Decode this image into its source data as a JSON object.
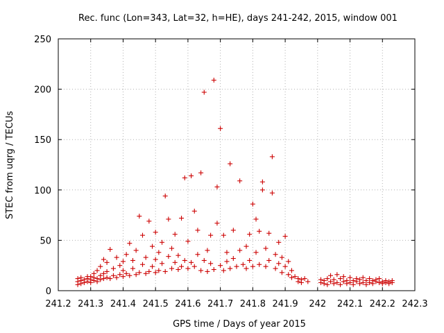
{
  "chart_data": {
    "type": "scatter",
    "title": "Rec. func (Lon=343, Lat=32, h=HE), days 241-242, 2015, window 001",
    "xlabel": "GPS time / Days of year 2015",
    "ylabel": "STEC from uqrg / TECUs",
    "xlim": [
      241.2,
      242.3
    ],
    "ylim": [
      0,
      250
    ],
    "xticks": [
      "241.2",
      "241.3",
      "241.4",
      "241.5",
      "241.6",
      "241.7",
      "241.8",
      "241.9",
      "242",
      "242.1",
      "242.2",
      "242.3"
    ],
    "yticks": [
      "0",
      "50",
      "100",
      "150",
      "200",
      "250"
    ],
    "grid": true,
    "marker": "+",
    "marker_color": "#cc0000",
    "points": [
      [
        241.26,
        6
      ],
      [
        241.26,
        9
      ],
      [
        241.26,
        12
      ],
      [
        241.27,
        7
      ],
      [
        241.27,
        10
      ],
      [
        241.27,
        13
      ],
      [
        241.28,
        8
      ],
      [
        241.28,
        11
      ],
      [
        241.29,
        9
      ],
      [
        241.29,
        12
      ],
      [
        241.29,
        14
      ],
      [
        241.3,
        8
      ],
      [
        241.3,
        11
      ],
      [
        241.3,
        14
      ],
      [
        241.31,
        10
      ],
      [
        241.31,
        13
      ],
      [
        241.31,
        17
      ],
      [
        241.32,
        9
      ],
      [
        241.32,
        12
      ],
      [
        241.32,
        20
      ],
      [
        241.33,
        11
      ],
      [
        241.33,
        15
      ],
      [
        241.33,
        24
      ],
      [
        241.34,
        12
      ],
      [
        241.34,
        17
      ],
      [
        241.34,
        31
      ],
      [
        241.35,
        13
      ],
      [
        241.35,
        19
      ],
      [
        241.35,
        28
      ],
      [
        241.36,
        41
      ],
      [
        241.36,
        12
      ],
      [
        241.37,
        15
      ],
      [
        241.37,
        22
      ],
      [
        241.38,
        33
      ],
      [
        241.38,
        13
      ],
      [
        241.39,
        16
      ],
      [
        241.39,
        25
      ],
      [
        241.4,
        14
      ],
      [
        241.4,
        20
      ],
      [
        241.4,
        29
      ],
      [
        241.41,
        17
      ],
      [
        241.41,
        36
      ],
      [
        241.42,
        15
      ],
      [
        241.42,
        47
      ],
      [
        241.43,
        22
      ],
      [
        241.43,
        30
      ],
      [
        241.44,
        16
      ],
      [
        241.44,
        40
      ],
      [
        241.45,
        74
      ],
      [
        241.45,
        18
      ],
      [
        241.46,
        26
      ],
      [
        241.46,
        55
      ],
      [
        241.47,
        17
      ],
      [
        241.47,
        33
      ],
      [
        241.48,
        69
      ],
      [
        241.48,
        19
      ],
      [
        241.49,
        24
      ],
      [
        241.49,
        44
      ],
      [
        241.5,
        18
      ],
      [
        241.5,
        31
      ],
      [
        241.5,
        58
      ],
      [
        241.51,
        20
      ],
      [
        241.51,
        38
      ],
      [
        241.52,
        27
      ],
      [
        241.52,
        48
      ],
      [
        241.53,
        94
      ],
      [
        241.53,
        19
      ],
      [
        241.54,
        34
      ],
      [
        241.54,
        71
      ],
      [
        241.55,
        22
      ],
      [
        241.55,
        42
      ],
      [
        241.56,
        28
      ],
      [
        241.56,
        56
      ],
      [
        241.57,
        21
      ],
      [
        241.57,
        35
      ],
      [
        241.58,
        72
      ],
      [
        241.58,
        24
      ],
      [
        241.59,
        112
      ],
      [
        241.59,
        30
      ],
      [
        241.6,
        22
      ],
      [
        241.6,
        49
      ],
      [
        241.61,
        114
      ],
      [
        241.61,
        28
      ],
      [
        241.62,
        79
      ],
      [
        241.62,
        24
      ],
      [
        241.63,
        60
      ],
      [
        241.63,
        36
      ],
      [
        241.64,
        117
      ],
      [
        241.64,
        20
      ],
      [
        241.65,
        197
      ],
      [
        241.65,
        30
      ],
      [
        241.66,
        40
      ],
      [
        241.66,
        19
      ],
      [
        241.67,
        55
      ],
      [
        241.67,
        27
      ],
      [
        241.68,
        209
      ],
      [
        241.68,
        21
      ],
      [
        241.69,
        103
      ],
      [
        241.69,
        67
      ],
      [
        241.7,
        161
      ],
      [
        241.7,
        25
      ],
      [
        241.71,
        55
      ],
      [
        241.71,
        20
      ],
      [
        241.72,
        38
      ],
      [
        241.72,
        29
      ],
      [
        241.73,
        126
      ],
      [
        241.73,
        22
      ],
      [
        241.74,
        60
      ],
      [
        241.74,
        32
      ],
      [
        241.75,
        24
      ],
      [
        241.76,
        109
      ],
      [
        241.76,
        40
      ],
      [
        241.77,
        26
      ],
      [
        241.78,
        44
      ],
      [
        241.78,
        22
      ],
      [
        241.79,
        56
      ],
      [
        241.79,
        30
      ],
      [
        241.8,
        86
      ],
      [
        241.8,
        24
      ],
      [
        241.81,
        71
      ],
      [
        241.81,
        38
      ],
      [
        241.82,
        59
      ],
      [
        241.82,
        26
      ],
      [
        241.83,
        108
      ],
      [
        241.83,
        100
      ],
      [
        241.84,
        42
      ],
      [
        241.84,
        24
      ],
      [
        241.85,
        57
      ],
      [
        241.85,
        30
      ],
      [
        241.86,
        133
      ],
      [
        241.86,
        97
      ],
      [
        241.87,
        36
      ],
      [
        241.87,
        22
      ],
      [
        241.88,
        48
      ],
      [
        241.88,
        27
      ],
      [
        241.89,
        33
      ],
      [
        241.89,
        18
      ],
      [
        241.9,
        54
      ],
      [
        241.9,
        24
      ],
      [
        241.91,
        29
      ],
      [
        241.91,
        16
      ],
      [
        241.92,
        20
      ],
      [
        241.92,
        13
      ],
      [
        241.93,
        14
      ],
      [
        241.94,
        12
      ],
      [
        241.94,
        9
      ],
      [
        241.95,
        11
      ],
      [
        241.95,
        8
      ],
      [
        241.96,
        12
      ],
      [
        241.97,
        9
      ],
      [
        242.01,
        8
      ],
      [
        242.01,
        11
      ],
      [
        242.02,
        7
      ],
      [
        242.02,
        10
      ],
      [
        242.03,
        12
      ],
      [
        242.03,
        6
      ],
      [
        242.04,
        9
      ],
      [
        242.04,
        15
      ],
      [
        242.05,
        7
      ],
      [
        242.05,
        11
      ],
      [
        242.06,
        16
      ],
      [
        242.06,
        8
      ],
      [
        242.07,
        6
      ],
      [
        242.07,
        12
      ],
      [
        242.08,
        9
      ],
      [
        242.08,
        14
      ],
      [
        242.09,
        7
      ],
      [
        242.09,
        10
      ],
      [
        242.1,
        8
      ],
      [
        242.1,
        13
      ],
      [
        242.11,
        6
      ],
      [
        242.11,
        10
      ],
      [
        242.12,
        9
      ],
      [
        242.12,
        12
      ],
      [
        242.13,
        7
      ],
      [
        242.13,
        11
      ],
      [
        242.14,
        8
      ],
      [
        242.14,
        13
      ],
      [
        242.15,
        10
      ],
      [
        242.15,
        6
      ],
      [
        242.16,
        12
      ],
      [
        242.16,
        8
      ],
      [
        242.17,
        10
      ],
      [
        242.17,
        7
      ],
      [
        242.18,
        11
      ],
      [
        242.18,
        9
      ],
      [
        242.19,
        8
      ],
      [
        242.19,
        12
      ],
      [
        242.2,
        9
      ],
      [
        242.2,
        7
      ],
      [
        242.21,
        10
      ],
      [
        242.21,
        8
      ],
      [
        242.22,
        9
      ],
      [
        242.22,
        7
      ],
      [
        242.23,
        10
      ],
      [
        242.23,
        8
      ]
    ]
  }
}
